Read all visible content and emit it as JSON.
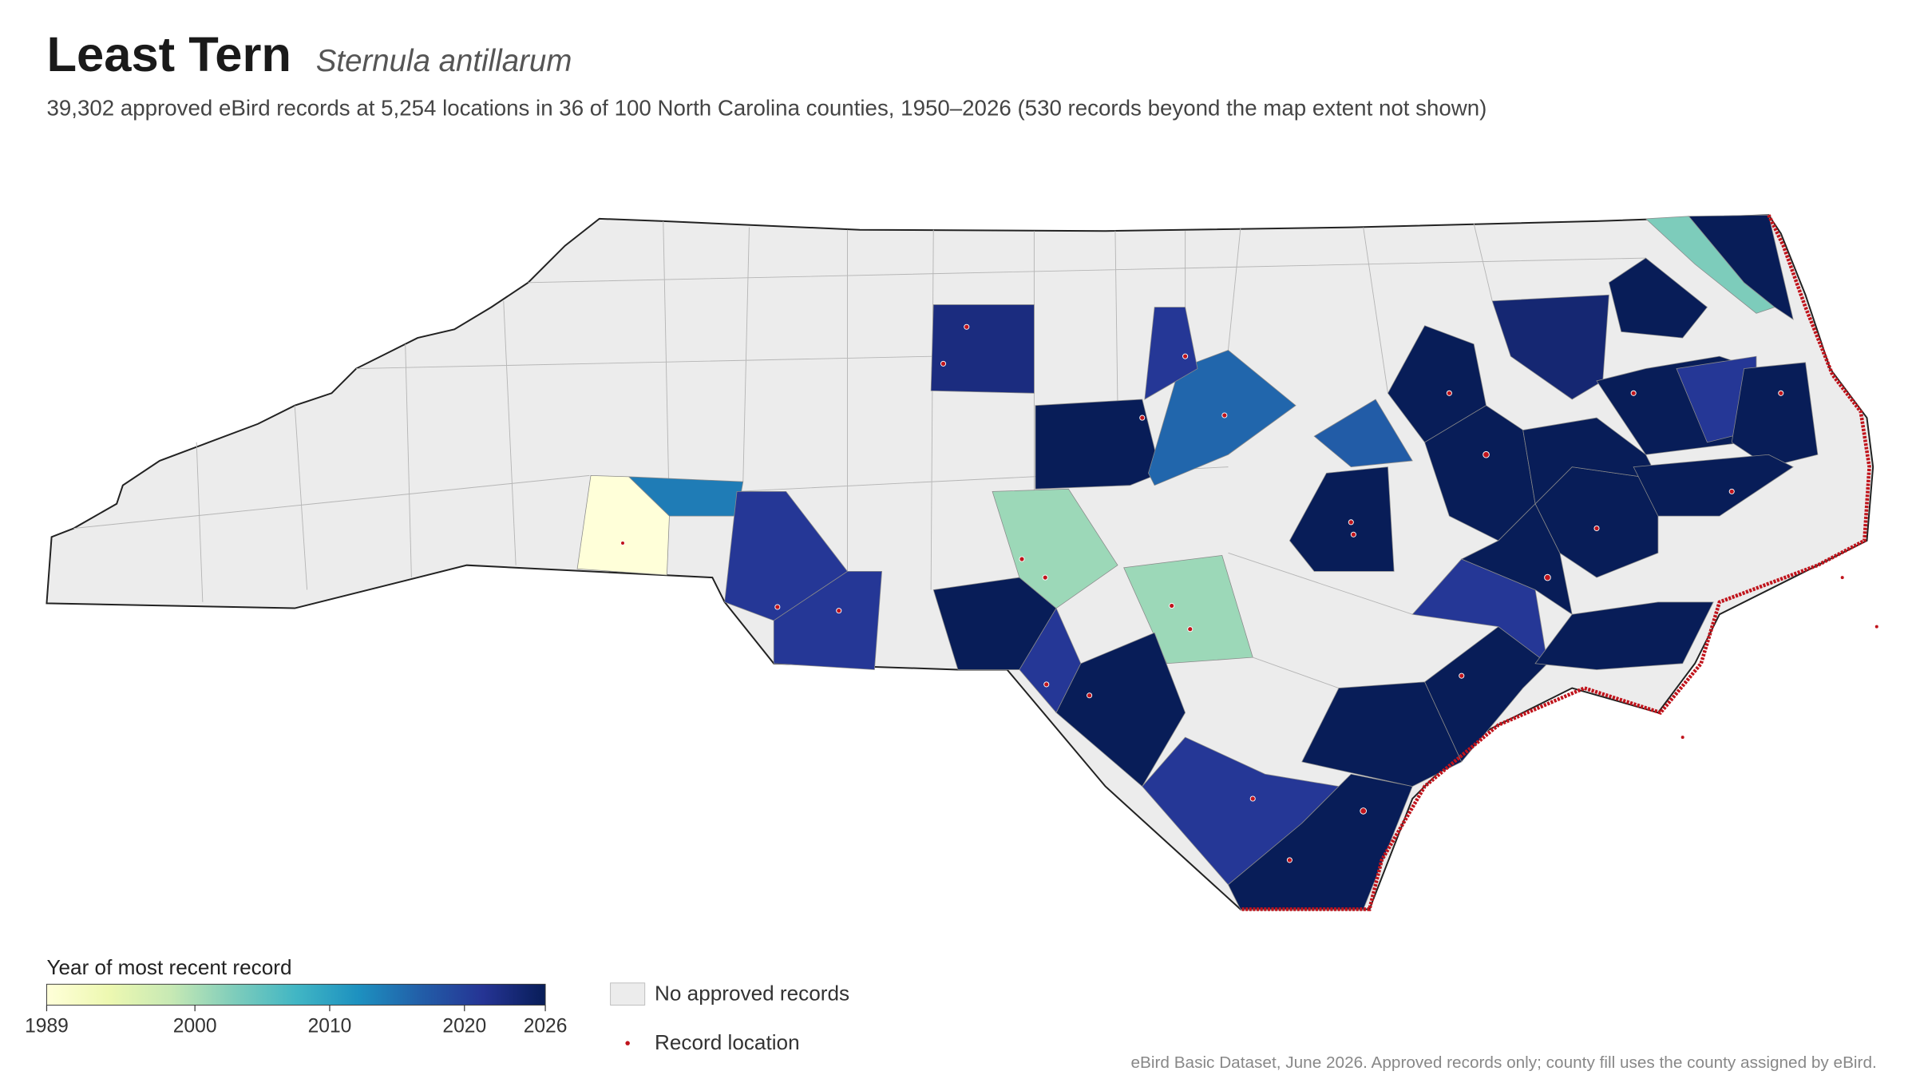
{
  "header": {
    "title": "Least Tern",
    "subtitle": "Sternula antillarum",
    "description": "39,302 approved eBird records at 5,254 locations in 36 of 100 North Carolina counties, 1950–2026 (530 records beyond the map extent not shown)"
  },
  "chart_data": {
    "type": "choropleth",
    "county_years": [
      1989,
      2014,
      2021,
      2021,
      2026,
      2021,
      2001,
      2001,
      2026,
      2021,
      2026,
      2026,
      2026,
      2021,
      2026,
      2017,
      2026,
      2016,
      2021,
      2023,
      2026,
      2026,
      2026,
      2026,
      2026,
      2026,
      2024,
      2026,
      2021,
      2026,
      2026,
      2026,
      2003,
      2026
    ],
    "colorbar": {
      "title": "Year of most recent record",
      "lim": [
        1989,
        2026
      ],
      "ticks": [
        1989,
        2000,
        2010,
        2020,
        2026
      ]
    },
    "legend": [
      "No approved records",
      "Record location"
    ]
  },
  "footer": "eBird Basic Dataset, June 2026. Approved records only; county fill uses the county assigned by eBird."
}
